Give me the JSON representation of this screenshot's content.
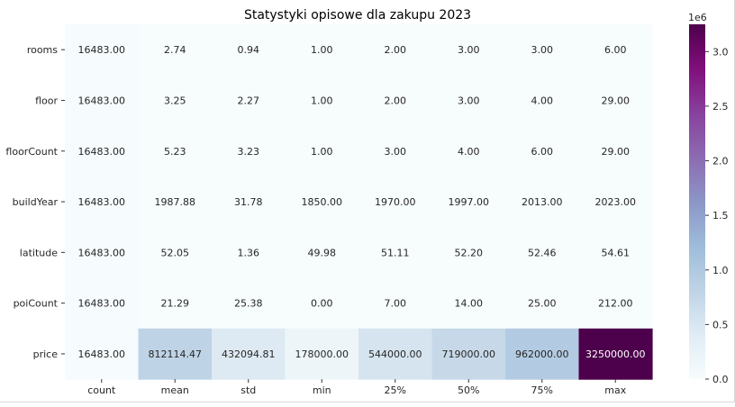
{
  "chart_data": {
    "type": "heatmap",
    "title": "Statystyki opisowe dla zakupu 2023",
    "columns": [
      "count",
      "mean",
      "std",
      "min",
      "25%",
      "50%",
      "75%",
      "max"
    ],
    "rows": [
      "rooms",
      "floor",
      "floorCount",
      "buildYear",
      "latitude",
      "poiCount",
      "price"
    ],
    "values": [
      [
        16483.0,
        2.74,
        0.94,
        1.0,
        2.0,
        3.0,
        3.0,
        6.0
      ],
      [
        16483.0,
        3.25,
        2.27,
        1.0,
        2.0,
        3.0,
        4.0,
        29.0
      ],
      [
        16483.0,
        5.23,
        3.23,
        1.0,
        3.0,
        4.0,
        6.0,
        29.0
      ],
      [
        16483.0,
        1987.88,
        31.78,
        1850.0,
        1970.0,
        1997.0,
        2013.0,
        2023.0
      ],
      [
        16483.0,
        52.05,
        1.36,
        49.98,
        51.11,
        52.2,
        52.46,
        54.61
      ],
      [
        16483.0,
        21.29,
        25.38,
        0.0,
        7.0,
        14.0,
        25.0,
        212.0
      ],
      [
        16483.0,
        812114.47,
        432094.81,
        178000.0,
        544000.0,
        719000.0,
        962000.0,
        3250000.0
      ]
    ],
    "value_format_decimals": 2,
    "colormap": "BuPu",
    "colorbar": {
      "range": [
        0,
        3250000
      ],
      "offset_label": "1e6",
      "tick_values": [
        0,
        500000,
        1000000,
        1500000,
        2000000,
        2500000,
        3000000
      ],
      "tick_labels": [
        "0.0",
        "0.5",
        "1.0",
        "1.5",
        "2.0",
        "2.5",
        "3.0"
      ]
    },
    "colors": {
      "cmap_low": "#f7fcfd",
      "cmap_high": "#4d004b",
      "text_dark": "#262626",
      "text_light": "#ffffff"
    }
  }
}
